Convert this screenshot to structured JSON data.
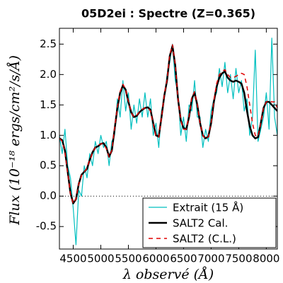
{
  "chart_data": {
    "type": "line",
    "title": "05D2ei : Spectre (Z=0.365)",
    "x_label": "λ observé (Å)",
    "y_label": "Flux (10⁻¹⁸ ergs/cm²/s/Å)",
    "x": [
      4250,
      4300,
      4350,
      4400,
      4450,
      4500,
      4550,
      4600,
      4650,
      4700,
      4750,
      4800,
      4850,
      4900,
      4950,
      5000,
      5050,
      5100,
      5150,
      5200,
      5250,
      5300,
      5350,
      5400,
      5450,
      5500,
      5550,
      5600,
      5650,
      5700,
      5750,
      5800,
      5850,
      5900,
      5950,
      6000,
      6050,
      6100,
      6150,
      6200,
      6250,
      6300,
      6350,
      6400,
      6450,
      6500,
      6550,
      6600,
      6650,
      6700,
      6750,
      6800,
      6850,
      6900,
      6950,
      7000,
      7050,
      7100,
      7150,
      7200,
      7250,
      7300,
      7350,
      7400,
      7450,
      7500,
      7550,
      7600,
      7650,
      7700,
      7750,
      7800,
      7850,
      7900,
      7950,
      8000,
      8050,
      8100,
      8150,
      8200
    ],
    "series": [
      {
        "name": "Extrait (15 Å)",
        "color": "#00bfbf",
        "width": 1.2,
        "style": "solid",
        "values": [
          1.0,
          0.7,
          1.1,
          0.5,
          0.3,
          -0.2,
          -0.8,
          0.1,
          0.0,
          0.5,
          0.3,
          0.7,
          0.5,
          0.9,
          0.7,
          1.0,
          0.8,
          0.9,
          0.5,
          0.9,
          1.0,
          1.6,
          1.3,
          1.9,
          1.4,
          1.7,
          1.1,
          1.5,
          1.2,
          1.6,
          1.3,
          1.7,
          1.3,
          1.6,
          1.0,
          1.2,
          0.8,
          1.4,
          1.6,
          2.0,
          2.2,
          2.5,
          1.9,
          1.7,
          1.0,
          1.3,
          0.9,
          1.5,
          1.4,
          1.9,
          1.3,
          1.3,
          0.8,
          1.1,
          0.9,
          1.4,
          1.6,
          1.7,
          2.1,
          1.8,
          2.2,
          1.7,
          2.0,
          1.6,
          2.1,
          1.7,
          1.9,
          1.4,
          1.6,
          1.0,
          1.3,
          2.4,
          0.9,
          1.1,
          1.3,
          1.7,
          1.1,
          2.6,
          1.3,
          1.0
        ]
      },
      {
        "name": "SALT2 Cal.",
        "color": "#000000",
        "width": 2.5,
        "style": "solid",
        "values": [
          0.95,
          0.92,
          0.75,
          0.4,
          0.05,
          -0.12,
          -0.05,
          0.2,
          0.35,
          0.4,
          0.45,
          0.6,
          0.72,
          0.8,
          0.82,
          0.86,
          0.87,
          0.8,
          0.65,
          0.75,
          1.1,
          1.45,
          1.7,
          1.82,
          1.75,
          1.55,
          1.38,
          1.3,
          1.32,
          1.38,
          1.42,
          1.45,
          1.46,
          1.42,
          1.2,
          1.0,
          0.98,
          1.3,
          1.65,
          1.9,
          2.3,
          2.47,
          2.15,
          1.6,
          1.25,
          1.12,
          1.1,
          1.3,
          1.6,
          1.7,
          1.5,
          1.2,
          1.0,
          0.95,
          0.98,
          1.2,
          1.55,
          1.8,
          1.95,
          2.02,
          2.05,
          1.95,
          1.9,
          1.88,
          1.9,
          1.88,
          1.85,
          1.7,
          1.4,
          1.15,
          1.0,
          0.95,
          0.97,
          1.2,
          1.45,
          1.55,
          1.55,
          1.5,
          1.45,
          1.4
        ]
      },
      {
        "name": "SALT2 (C.L.)",
        "color": "#e00000",
        "width": 1.5,
        "style": "dashed",
        "values": [
          0.95,
          0.9,
          0.72,
          0.38,
          0.03,
          -0.12,
          -0.04,
          0.2,
          0.34,
          0.4,
          0.46,
          0.6,
          0.72,
          0.8,
          0.83,
          0.86,
          0.86,
          0.78,
          0.64,
          0.76,
          1.12,
          1.47,
          1.72,
          1.84,
          1.76,
          1.56,
          1.38,
          1.3,
          1.33,
          1.39,
          1.43,
          1.45,
          1.45,
          1.4,
          1.18,
          0.98,
          0.97,
          1.3,
          1.66,
          1.92,
          2.32,
          2.49,
          2.16,
          1.6,
          1.24,
          1.1,
          1.1,
          1.32,
          1.62,
          1.72,
          1.5,
          1.2,
          1.0,
          0.94,
          0.98,
          1.22,
          1.58,
          1.85,
          2.0,
          2.05,
          2.08,
          2.0,
          1.95,
          1.95,
          1.97,
          2.0,
          2.02,
          2.0,
          1.8,
          1.5,
          1.2,
          1.0,
          0.98,
          1.2,
          1.45,
          1.55,
          1.57,
          1.55,
          1.55,
          1.45
        ]
      }
    ],
    "xlim": [
      4250,
      8200
    ],
    "xticks": [
      4500,
      5000,
      5500,
      6000,
      6500,
      7000,
      7500,
      8000
    ],
    "ylim": [
      -0.87,
      2.76
    ],
    "yticks": [
      -0.5,
      {
        "value": 0,
        "label": "0.0"
      },
      0.5,
      {
        "value": 1,
        "label": "1.0"
      },
      1.5,
      {
        "value": 2,
        "label": "2.0"
      },
      2.5
    ],
    "hline": 0,
    "legend": "lower right",
    "grid": false
  }
}
